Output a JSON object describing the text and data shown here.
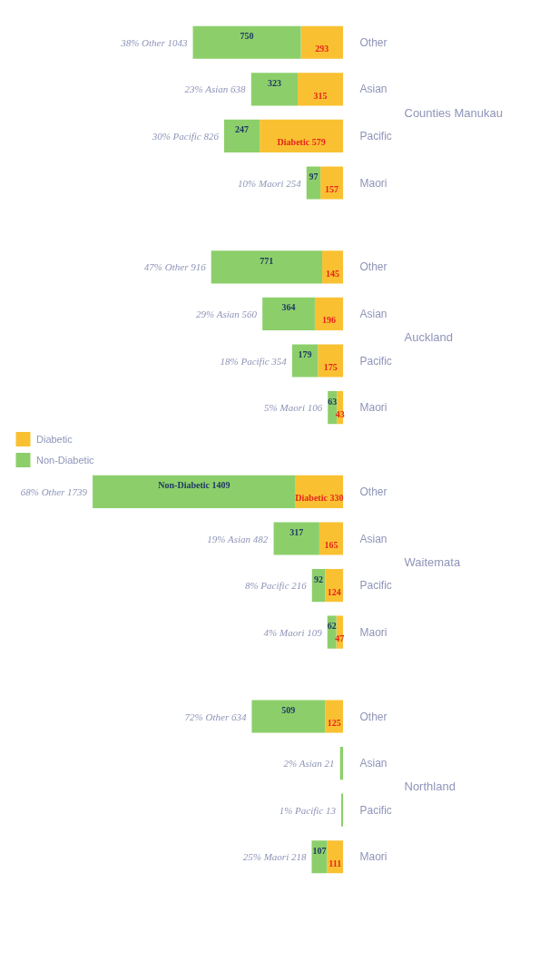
{
  "chart_data": {
    "type": "bar",
    "orientation": "horizontal",
    "stacked": true,
    "legend": "left",
    "grid": false,
    "categories": [
      "Other",
      "Asian",
      "Pacific",
      "Maori",
      "Other",
      "Asian",
      "Pacific",
      "Maori",
      "Other",
      "Asian",
      "Pacific",
      "Maori",
      "Other",
      "Asian",
      "Pacific",
      "Maori"
    ],
    "annotations": [
      "Counties Manukau",
      "Auckland",
      "Waitemata",
      "Northland"
    ],
    "series": [
      {
        "name": "Diabetic",
        "color": "#f9c132",
        "values": [
          293,
          315,
          579,
          157,
          145,
          196,
          175,
          43,
          330,
          165,
          124,
          47,
          125,
          null,
          null,
          111
        ],
        "value_labels": [
          "293",
          "315",
          "Diabetic 579",
          "157",
          "145",
          "196",
          "175",
          "43",
          "Diabetic 330",
          "165",
          "124",
          "47",
          "125",
          null,
          null,
          "111"
        ]
      },
      {
        "name": "Non-Diabetic",
        "color": "#8ccf6a",
        "values": [
          750,
          323,
          247,
          97,
          771,
          364,
          179,
          63,
          1409,
          317,
          92,
          62,
          509,
          21,
          13,
          107
        ],
        "value_labels": [
          "750",
          "323",
          "247",
          "97",
          "771",
          "364",
          "179",
          "63",
          "Non-Diabetic 1409",
          "317",
          "92",
          "62",
          "509",
          null,
          null,
          "107"
        ]
      }
    ],
    "totals": [
      "38% Other 1043",
      "23% Asian 638",
      "30% Pacific 826",
      "10% Maori 254",
      "47% Other 916",
      "29% Asian 560",
      "18% Pacific 354",
      "5% Maori 106",
      "68% Other 1739",
      "19% Asian 482",
      "8% Pacific 216",
      "4% Maori 109",
      "72% Other 634",
      "2% Asian 21",
      "1% Pacific 13",
      "25% Maori 218"
    ]
  }
}
